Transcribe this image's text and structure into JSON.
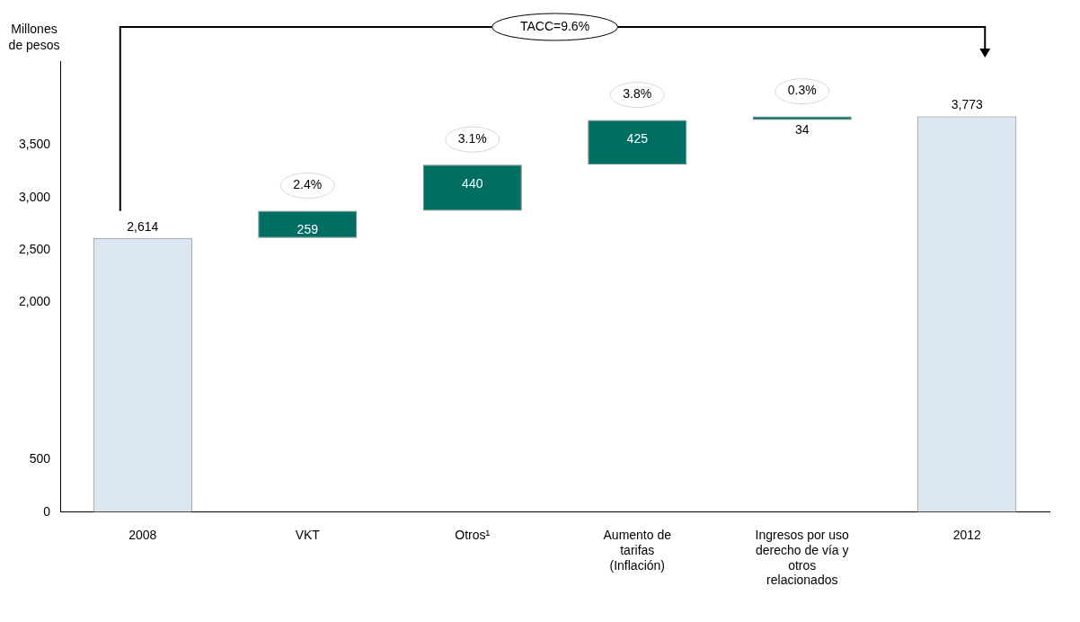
{
  "chart_data": {
    "type": "bar",
    "ylabel": "Millones de pesos",
    "categories": [
      "2008",
      "VKT",
      "Otros¹",
      "Aumento de tarifas (Inflación)",
      "Ingresos por uso derecho de vía y otros relacionados",
      "2012"
    ],
    "values": [
      2614,
      259,
      440,
      425,
      34,
      3773
    ],
    "base": [
      0,
      2614,
      2873,
      3313,
      3738,
      0
    ],
    "colors": [
      "#dce6f2",
      "#006f62",
      "#006f62",
      "#006f62",
      "#006f62",
      "#dce6f2"
    ],
    "value_labels": [
      "2,614",
      "259",
      "440",
      "425",
      "34",
      "3,773"
    ],
    "ylim": [
      0,
      4300
    ],
    "yticks": [
      0,
      500,
      {
        "value": 2000,
        "label": "2,000"
      },
      {
        "value": 2500,
        "label": "2,500"
      },
      {
        "value": 3000,
        "label": "3,000"
      },
      {
        "value": 3500,
        "label": "3,500"
      }
    ],
    "annotations": [
      "TACC=9.6%",
      "2.4%",
      "3.1%",
      "3.8%",
      "0.3%"
    ],
    "grid": false,
    "legend": false
  }
}
